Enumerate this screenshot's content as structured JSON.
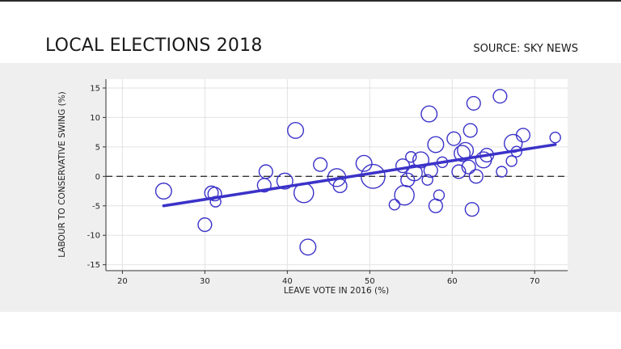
{
  "header": {
    "title": "LOCAL ELECTIONS 2018",
    "source": "SOURCE: SKY NEWS"
  },
  "colors": {
    "bubble": "#3b32c8",
    "fit_line": "#3b32c8",
    "panel_bg": "#efefef",
    "plot_bg": "#ffffff"
  },
  "chart_data": {
    "type": "scatter",
    "xlabel": "LEAVE VOTE IN 2016 (%)",
    "ylabel": "LABOUR TO CONSERVATIVE SWING (%)",
    "xlim": [
      18,
      74
    ],
    "ylim": [
      -16,
      16.5
    ],
    "xticks": [
      20,
      30,
      40,
      50,
      60,
      70
    ],
    "yticks": [
      15,
      10,
      5,
      0,
      -5,
      -10,
      -15
    ],
    "grid": true,
    "reference_line": {
      "y": 0,
      "style": "dashed"
    },
    "fit_line": {
      "x": [
        25,
        72.5
      ],
      "y": [
        -5,
        5.4
      ]
    },
    "points": [
      {
        "x": 25.0,
        "y": -2.5,
        "size": 3
      },
      {
        "x": 30.0,
        "y": -8.2,
        "size": 2
      },
      {
        "x": 30.8,
        "y": -2.8,
        "size": 2
      },
      {
        "x": 31.2,
        "y": -3.0,
        "size": 2
      },
      {
        "x": 31.3,
        "y": -4.3,
        "size": 1
      },
      {
        "x": 37.2,
        "y": -1.5,
        "size": 2
      },
      {
        "x": 37.4,
        "y": 0.8,
        "size": 2
      },
      {
        "x": 39.7,
        "y": -0.8,
        "size": 3
      },
      {
        "x": 41.0,
        "y": 7.8,
        "size": 3
      },
      {
        "x": 42.0,
        "y": -2.8,
        "size": 5
      },
      {
        "x": 42.5,
        "y": -12.0,
        "size": 3
      },
      {
        "x": 44.0,
        "y": 2.0,
        "size": 2
      },
      {
        "x": 46.0,
        "y": -0.2,
        "size": 4
      },
      {
        "x": 46.4,
        "y": -1.6,
        "size": 2
      },
      {
        "x": 49.3,
        "y": 2.2,
        "size": 3
      },
      {
        "x": 50.4,
        "y": 0.0,
        "size": 8
      },
      {
        "x": 53.0,
        "y": -4.8,
        "size": 1
      },
      {
        "x": 54.0,
        "y": 1.8,
        "size": 2
      },
      {
        "x": 54.2,
        "y": -3.2,
        "size": 5
      },
      {
        "x": 54.6,
        "y": -0.6,
        "size": 2
      },
      {
        "x": 55.0,
        "y": 3.3,
        "size": 1
      },
      {
        "x": 55.4,
        "y": 0.6,
        "size": 3
      },
      {
        "x": 56.2,
        "y": 2.8,
        "size": 3
      },
      {
        "x": 57.0,
        "y": -0.6,
        "size": 1
      },
      {
        "x": 57.2,
        "y": 10.6,
        "size": 3
      },
      {
        "x": 57.4,
        "y": 1.0,
        "size": 2
      },
      {
        "x": 58.0,
        "y": -5.0,
        "size": 2
      },
      {
        "x": 58.0,
        "y": 5.4,
        "size": 3
      },
      {
        "x": 58.4,
        "y": -3.2,
        "size": 1
      },
      {
        "x": 58.8,
        "y": 2.4,
        "size": 1
      },
      {
        "x": 60.2,
        "y": 6.4,
        "size": 2
      },
      {
        "x": 60.8,
        "y": 0.8,
        "size": 2
      },
      {
        "x": 61.2,
        "y": 3.9,
        "size": 3
      },
      {
        "x": 61.6,
        "y": 4.4,
        "size": 3
      },
      {
        "x": 62.0,
        "y": 1.6,
        "size": 2
      },
      {
        "x": 62.2,
        "y": 7.8,
        "size": 2
      },
      {
        "x": 62.4,
        "y": -5.6,
        "size": 2
      },
      {
        "x": 62.6,
        "y": 12.4,
        "size": 2
      },
      {
        "x": 62.9,
        "y": 0.0,
        "size": 2
      },
      {
        "x": 63.8,
        "y": 2.8,
        "size": 3
      },
      {
        "x": 64.2,
        "y": 3.6,
        "size": 2
      },
      {
        "x": 65.8,
        "y": 13.6,
        "size": 2
      },
      {
        "x": 66.0,
        "y": 0.8,
        "size": 1
      },
      {
        "x": 67.2,
        "y": 2.6,
        "size": 1
      },
      {
        "x": 67.4,
        "y": 5.6,
        "size": 4
      },
      {
        "x": 67.8,
        "y": 4.2,
        "size": 1
      },
      {
        "x": 68.6,
        "y": 7.0,
        "size": 2
      },
      {
        "x": 72.5,
        "y": 6.6,
        "size": 1
      }
    ]
  }
}
